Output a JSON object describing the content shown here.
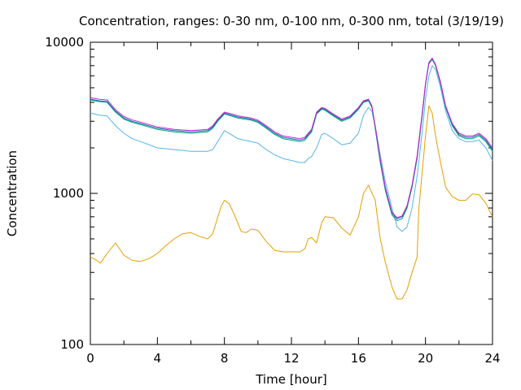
{
  "chart_data": {
    "type": "line",
    "title": "Concentration, ranges: 0-30 nm, 0-100 nm, 0-300 nm, total (3/19/19)",
    "xlabel": "Time [hour]",
    "ylabel": "Concentration",
    "xlim": [
      0,
      24
    ],
    "ylim": [
      100,
      10000
    ],
    "yscale": "log",
    "grid": false,
    "legend": "none",
    "x_ticks": [
      "0",
      "4",
      "8",
      "12",
      "16",
      "20",
      "24"
    ],
    "y_ticks": [
      "100",
      "1000",
      "10000"
    ],
    "series": [
      {
        "color": "#e69f00",
        "x": [
          0,
          0.3,
          0.6,
          1,
          1.5,
          2,
          2.5,
          3,
          3.5,
          4,
          4.5,
          5,
          5.5,
          6,
          6.5,
          7,
          7.3,
          7.5,
          7.8,
          8,
          8.3,
          8.6,
          9,
          9.3,
          9.6,
          10,
          10.5,
          11,
          11.5,
          12,
          12.5,
          12.8,
          13,
          13.2,
          13.5,
          13.8,
          14,
          14.5,
          15,
          15.5,
          16,
          16.3,
          16.6,
          17,
          17.3,
          17.6,
          18,
          18.3,
          18.6,
          18.9,
          19.2,
          19.5,
          19.6,
          20,
          20.2,
          20.4,
          20.6,
          20.9,
          21.2,
          21.6,
          22,
          22.4,
          22.8,
          23.2,
          23.6,
          24
        ],
        "values": [
          380,
          365,
          345,
          400,
          470,
          390,
          360,
          355,
          370,
          400,
          450,
          500,
          540,
          550,
          520,
          500,
          540,
          640,
          820,
          900,
          850,
          720,
          560,
          550,
          580,
          570,
          480,
          420,
          410,
          410,
          410,
          430,
          500,
          510,
          470,
          640,
          700,
          690,
          590,
          530,
          700,
          1000,
          1130,
          900,
          500,
          350,
          240,
          200,
          200,
          230,
          300,
          380,
          780,
          2400,
          3800,
          3400,
          2400,
          1600,
          1100,
          950,
          900,
          900,
          990,
          980,
          860,
          700
        ]
      },
      {
        "color": "#56b4e9",
        "x": [
          0,
          0.5,
          1,
          1.5,
          2,
          2.5,
          3,
          4,
          5,
          6,
          7,
          7.3,
          7.6,
          8,
          8.4,
          8.8,
          9.2,
          9.6,
          10,
          10.5,
          11,
          11.5,
          12,
          12.5,
          12.8,
          13,
          13.2,
          13.5,
          13.8,
          14,
          14.5,
          15,
          15.5,
          16,
          16.3,
          16.6,
          16.8,
          17,
          17.3,
          17.6,
          18,
          18.3,
          18.6,
          18.9,
          19.2,
          19.5,
          19.8,
          20,
          20.2,
          20.4,
          20.6,
          20.9,
          21.2,
          21.6,
          22,
          22.4,
          22.8,
          23.2,
          23.6,
          24
        ],
        "values": [
          3400,
          3300,
          3250,
          2800,
          2500,
          2300,
          2200,
          2000,
          1950,
          1900,
          1900,
          1950,
          2200,
          2600,
          2450,
          2300,
          2250,
          2200,
          2150,
          1950,
          1800,
          1700,
          1650,
          1600,
          1600,
          1700,
          1750,
          2000,
          2450,
          2500,
          2300,
          2100,
          2150,
          2500,
          3300,
          3700,
          3500,
          2800,
          1800,
          1200,
          800,
          600,
          560,
          600,
          800,
          1300,
          2500,
          4200,
          6000,
          7000,
          6600,
          5000,
          3500,
          2600,
          2300,
          2200,
          2200,
          2250,
          2000,
          1650
        ]
      },
      {
        "color": "#009e73",
        "x": [
          0,
          0.5,
          1,
          1.5,
          2,
          2.5,
          3,
          4,
          5,
          6,
          7,
          7.3,
          7.6,
          8,
          8.4,
          8.8,
          9.2,
          9.6,
          10,
          10.5,
          11,
          11.5,
          12,
          12.5,
          12.8,
          13,
          13.2,
          13.5,
          13.8,
          14,
          14.5,
          15,
          15.5,
          16,
          16.3,
          16.6,
          16.8,
          17,
          17.3,
          17.6,
          18,
          18.3,
          18.6,
          18.9,
          19.2,
          19.5,
          19.8,
          20,
          20.2,
          20.4,
          20.6,
          20.9,
          21.2,
          21.6,
          22,
          22.4,
          22.8,
          23.2,
          23.6,
          24
        ],
        "values": [
          4150,
          4050,
          4000,
          3450,
          3100,
          2950,
          2850,
          2650,
          2550,
          2500,
          2550,
          2700,
          3000,
          3350,
          3250,
          3150,
          3100,
          3050,
          2950,
          2700,
          2450,
          2300,
          2250,
          2200,
          2250,
          2400,
          2550,
          3350,
          3600,
          3550,
          3250,
          3000,
          3150,
          3600,
          4000,
          4100,
          3700,
          2700,
          1600,
          1050,
          720,
          660,
          680,
          800,
          1100,
          1700,
          3200,
          5200,
          7200,
          7700,
          7000,
          5300,
          3700,
          2800,
          2400,
          2300,
          2300,
          2400,
          2200,
          1900
        ]
      },
      {
        "color": "#0072b2",
        "x": [
          0,
          0.5,
          1,
          1.5,
          2,
          2.5,
          3,
          4,
          5,
          6,
          7,
          7.3,
          7.6,
          8,
          8.4,
          8.8,
          9.2,
          9.6,
          10,
          10.5,
          11,
          11.5,
          12,
          12.5,
          12.8,
          13,
          13.2,
          13.5,
          13.8,
          14,
          14.5,
          15,
          15.5,
          16,
          16.3,
          16.6,
          16.8,
          17,
          17.3,
          17.6,
          18,
          18.3,
          18.6,
          18.9,
          19.2,
          19.5,
          19.8,
          20,
          20.2,
          20.4,
          20.6,
          20.9,
          21.2,
          21.6,
          22,
          22.4,
          22.8,
          23.2,
          23.6,
          24
        ],
        "values": [
          4200,
          4100,
          4050,
          3500,
          3150,
          3000,
          2900,
          2700,
          2600,
          2550,
          2600,
          2750,
          3050,
          3400,
          3300,
          3200,
          3150,
          3100,
          3000,
          2750,
          2500,
          2350,
          2300,
          2250,
          2300,
          2450,
          2600,
          3400,
          3650,
          3600,
          3300,
          3050,
          3200,
          3650,
          4050,
          4150,
          3750,
          2750,
          1650,
          1080,
          740,
          680,
          700,
          820,
          1120,
          1750,
          3300,
          5300,
          7300,
          7800,
          7100,
          5400,
          3750,
          2850,
          2450,
          2350,
          2350,
          2450,
          2250,
          1950
        ]
      },
      {
        "color": "#d01fd0",
        "x": [
          0,
          0.5,
          1,
          1.5,
          2,
          2.5,
          3,
          4,
          5,
          6,
          7,
          7.3,
          7.6,
          8,
          8.4,
          8.8,
          9.2,
          9.6,
          10,
          10.5,
          11,
          11.5,
          12,
          12.5,
          12.8,
          13,
          13.2,
          13.5,
          13.8,
          14,
          14.5,
          15,
          15.5,
          16,
          16.3,
          16.6,
          16.8,
          17,
          17.3,
          17.6,
          18,
          18.3,
          18.6,
          18.9,
          19.2,
          19.5,
          19.8,
          20,
          20.2,
          20.4,
          20.6,
          20.9,
          21.2,
          21.6,
          22,
          22.4,
          22.8,
          23.2,
          23.6,
          24
        ],
        "values": [
          4300,
          4200,
          4150,
          3580,
          3220,
          3060,
          2960,
          2750,
          2650,
          2600,
          2650,
          2800,
          3100,
          3450,
          3360,
          3260,
          3200,
          3150,
          3050,
          2800,
          2550,
          2400,
          2350,
          2300,
          2350,
          2500,
          2650,
          3450,
          3700,
          3650,
          3350,
          3100,
          3250,
          3700,
          4100,
          4200,
          3800,
          2800,
          1680,
          1100,
          750,
          690,
          710,
          830,
          1140,
          1780,
          3350,
          5350,
          7350,
          7850,
          7150,
          5450,
          3800,
          2900,
          2500,
          2400,
          2400,
          2500,
          2300,
          2000
        ]
      }
    ]
  }
}
